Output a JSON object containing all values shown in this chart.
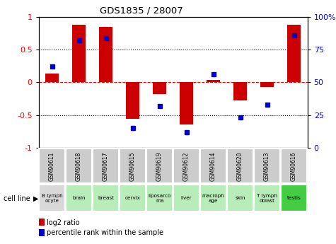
{
  "title": "GDS1835 / 28007",
  "gsm_labels": [
    "GSM90611",
    "GSM90618",
    "GSM90617",
    "GSM90615",
    "GSM90619",
    "GSM90612",
    "GSM90614",
    "GSM90620",
    "GSM90613",
    "GSM90616"
  ],
  "cell_labels": [
    "B lymph\nocyte",
    "brain",
    "breast",
    "cervix",
    "liposarco\nma",
    "liver",
    "macroph\nage",
    "skin",
    "T lymph\noblast",
    "testis"
  ],
  "log2_ratio": [
    0.13,
    0.88,
    0.85,
    -0.56,
    -0.18,
    -0.65,
    0.04,
    -0.28,
    -0.07,
    0.88
  ],
  "percentile_rank": [
    62,
    82,
    84,
    15,
    32,
    12,
    56,
    23,
    33,
    86
  ],
  "bar_color": "#cc0000",
  "dot_color": "#0000cc",
  "ylim_left": [
    -1,
    1
  ],
  "ylim_right": [
    0,
    100
  ],
  "left_ticks": [
    -1,
    -0.5,
    0,
    0.5,
    1
  ],
  "left_tick_labels": [
    "-1",
    "-0.5",
    "0",
    "0.5",
    "1"
  ],
  "right_ticks": [
    0,
    25,
    50,
    75,
    100
  ],
  "right_tick_labels": [
    "0",
    "25",
    "50",
    "75",
    "100%"
  ],
  "cell_bg_colors": [
    "#d8d8d8",
    "#b8ecb8",
    "#b8ecb8",
    "#b8ecb8",
    "#b8ecb8",
    "#b8ecb8",
    "#b8ecb8",
    "#b8ecb8",
    "#b8ecb8",
    "#44cc44"
  ],
  "gsm_bg_color": "#cccccc",
  "gsm_border_color": "#ffffff",
  "legend_items": [
    {
      "color": "#cc0000",
      "label": "log2 ratio"
    },
    {
      "color": "#0000cc",
      "label": "percentile rank within the sample"
    }
  ],
  "bar_width": 0.5
}
